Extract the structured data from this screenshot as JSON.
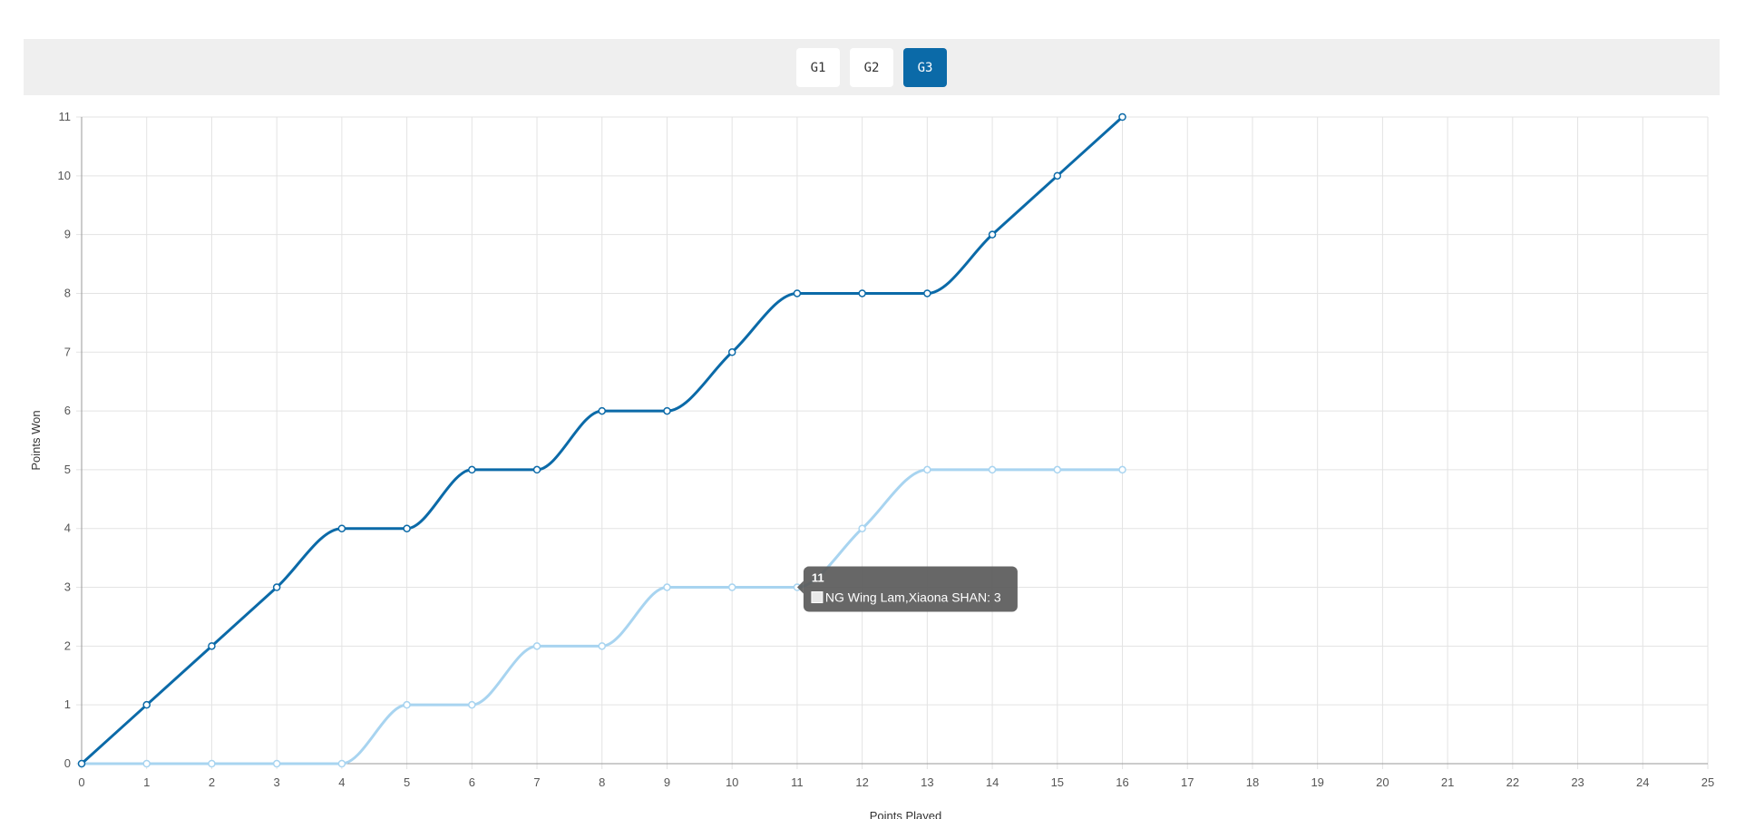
{
  "game_tabs": {
    "items": [
      {
        "label": "G1",
        "active": false
      },
      {
        "label": "G2",
        "active": false
      },
      {
        "label": "G3",
        "active": true
      }
    ]
  },
  "colors": {
    "accent": "#0b6aa8",
    "series_light": "#a8d4f0",
    "grid": "#e3e3e3",
    "tab_bar": "#efefef",
    "tooltip_bg": "#5a5a5a"
  },
  "chart_data": {
    "type": "line",
    "xlabel": "Points Played",
    "ylabel": "Points Won",
    "xlim": [
      0,
      25
    ],
    "ylim": [
      0,
      11
    ],
    "x_ticks": [
      0,
      1,
      2,
      3,
      4,
      5,
      6,
      7,
      8,
      9,
      10,
      11,
      12,
      13,
      14,
      15,
      16,
      17,
      18,
      19,
      20,
      21,
      22,
      23,
      24,
      25
    ],
    "y_ticks": [
      0,
      1,
      2,
      3,
      4,
      5,
      6,
      7,
      8,
      9,
      10,
      11
    ],
    "grid": true,
    "smoothed": true,
    "x": [
      0,
      1,
      2,
      3,
      4,
      5,
      6,
      7,
      8,
      9,
      10,
      11,
      12,
      13,
      14,
      15,
      16
    ],
    "series": [
      {
        "color": "#0b6aa8",
        "values": [
          0,
          1,
          2,
          3,
          4,
          4,
          5,
          5,
          6,
          6,
          7,
          8,
          8,
          8,
          9,
          10,
          11
        ]
      },
      {
        "name": "NG Wing Lam,Xiaona SHAN",
        "color": "#a8d4f0",
        "values": [
          0,
          0,
          0,
          0,
          0,
          1,
          1,
          2,
          2,
          3,
          3,
          3,
          4,
          5,
          5,
          5,
          5
        ]
      }
    ],
    "tooltip": {
      "title": "11",
      "text": "NG Wing Lam,Xiaona SHAN: 3",
      "series_index": 1,
      "x": 11,
      "y": 3
    }
  }
}
